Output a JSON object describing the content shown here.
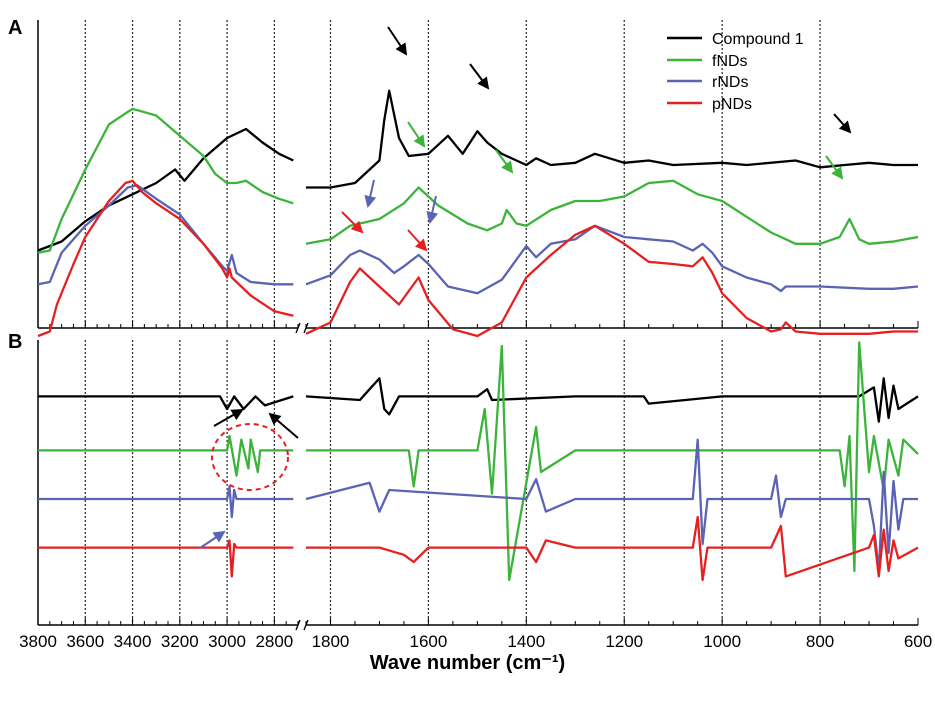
{
  "chart_data": {
    "type": "line",
    "xlabel": "Wave number (cm⁻¹)",
    "x_reversed": true,
    "x_break": [
      2700,
      1850
    ],
    "xlim_left": [
      3800,
      2700
    ],
    "xlim_right": [
      1850,
      600
    ],
    "x_ticks": [
      3800,
      3600,
      3400,
      3200,
      3000,
      2800,
      1800,
      1600,
      1400,
      1200,
      1000,
      800,
      600
    ],
    "grid": "dashed-vertical",
    "colors": {
      "Compound 1": "#000000",
      "fNDs": "#3cb43c",
      "rNDs": "#5a64b4",
      "pNDs": "#e62020"
    },
    "legend": {
      "placement": "top-right",
      "entries": [
        "Compound 1",
        "fNDs",
        "rNDs",
        "pNDs"
      ]
    },
    "panels": [
      {
        "label": "A",
        "series": [
          {
            "name": "Compound 1",
            "x": [
              3800,
              3700,
              3600,
              3500,
              3400,
              3300,
              3220,
              3180,
              3100,
              3000,
              2920,
              2850,
              2780,
              2720,
              1850,
              1800,
              1750,
              1700,
              1690,
              1680,
              1660,
              1640,
              1600,
              1560,
              1530,
              1500,
              1480,
              1450,
              1400,
              1380,
              1350,
              1300,
              1260,
              1200,
              1150,
              1100,
              1000,
              950,
              850,
              800,
              750,
              700,
              650,
              600
            ],
            "y": [
              0.22,
              0.26,
              0.35,
              0.42,
              0.47,
              0.52,
              0.58,
              0.53,
              0.63,
              0.72,
              0.76,
              0.7,
              0.65,
              0.62,
              0.5,
              0.5,
              0.52,
              0.62,
              0.8,
              0.93,
              0.72,
              0.64,
              0.65,
              0.73,
              0.65,
              0.75,
              0.7,
              0.65,
              0.6,
              0.63,
              0.6,
              0.61,
              0.65,
              0.61,
              0.62,
              0.6,
              0.61,
              0.6,
              0.62,
              0.59,
              0.6,
              0.61,
              0.6,
              0.6
            ]
          },
          {
            "name": "fNDs",
            "x": [
              3800,
              3750,
              3700,
              3600,
              3500,
              3400,
              3300,
              3200,
              3100,
              3050,
              3000,
              2960,
              2920,
              2850,
              2780,
              2720,
              1850,
              1800,
              1760,
              1700,
              1650,
              1620,
              1580,
              1520,
              1480,
              1450,
              1440,
              1420,
              1400,
              1350,
              1300,
              1250,
              1200,
              1150,
              1100,
              1050,
              1000,
              950,
              900,
              850,
              800,
              760,
              740,
              720,
              700,
              650,
              600
            ],
            "y": [
              0.21,
              0.22,
              0.36,
              0.58,
              0.78,
              0.85,
              0.82,
              0.73,
              0.64,
              0.56,
              0.52,
              0.52,
              0.53,
              0.48,
              0.45,
              0.43,
              0.25,
              0.27,
              0.33,
              0.36,
              0.43,
              0.5,
              0.42,
              0.34,
              0.31,
              0.34,
              0.4,
              0.34,
              0.33,
              0.4,
              0.44,
              0.44,
              0.46,
              0.52,
              0.53,
              0.47,
              0.44,
              0.37,
              0.3,
              0.25,
              0.25,
              0.28,
              0.36,
              0.27,
              0.25,
              0.26,
              0.28
            ]
          },
          {
            "name": "rNDs",
            "x": [
              3800,
              3750,
              3700,
              3600,
              3500,
              3420,
              3380,
              3300,
              3200,
              3100,
              3020,
              3000,
              2980,
              2960,
              2900,
              2800,
              2720,
              1850,
              1800,
              1760,
              1740,
              1700,
              1670,
              1650,
              1620,
              1600,
              1560,
              1500,
              1450,
              1400,
              1380,
              1350,
              1300,
              1280,
              1260,
              1200,
              1150,
              1100,
              1060,
              1040,
              1020,
              1000,
              950,
              900,
              880,
              870,
              850,
              800,
              700,
              650,
              600
            ],
            "y": [
              0.07,
              0.08,
              0.21,
              0.33,
              0.42,
              0.5,
              0.51,
              0.45,
              0.38,
              0.25,
              0.15,
              0.13,
              0.2,
              0.12,
              0.08,
              0.07,
              0.07,
              0.07,
              0.11,
              0.2,
              0.22,
              0.18,
              0.12,
              0.15,
              0.2,
              0.16,
              0.06,
              0.03,
              0.09,
              0.24,
              0.19,
              0.25,
              0.27,
              0.3,
              0.33,
              0.28,
              0.27,
              0.26,
              0.22,
              0.25,
              0.21,
              0.15,
              0.1,
              0.07,
              0.04,
              0.06,
              0.06,
              0.06,
              0.05,
              0.05,
              0.06
            ]
          },
          {
            "name": "pNDs",
            "x": [
              3800,
              3750,
              3720,
              3650,
              3600,
              3500,
              3430,
              3400,
              3360,
              3300,
              3200,
              3100,
              3020,
              3000,
              2990,
              2980,
              2900,
              2800,
              2720,
              1850,
              1800,
              1760,
              1740,
              1700,
              1660,
              1640,
              1620,
              1600,
              1550,
              1500,
              1450,
              1400,
              1350,
              1300,
              1260,
              1200,
              1150,
              1100,
              1060,
              1040,
              1020,
              1000,
              950,
              900,
              880,
              870,
              850,
              800,
              700,
              650,
              600
            ],
            "y": [
              -0.16,
              -0.14,
              -0.02,
              0.16,
              0.28,
              0.44,
              0.52,
              0.53,
              0.48,
              0.43,
              0.36,
              0.25,
              0.14,
              0.1,
              0.14,
              0.1,
              0.02,
              -0.05,
              -0.07,
              -0.15,
              -0.1,
              0.08,
              0.14,
              0.06,
              -0.02,
              0.04,
              0.1,
              0.0,
              -0.13,
              -0.16,
              -0.1,
              0.1,
              0.2,
              0.29,
              0.33,
              0.25,
              0.17,
              0.16,
              0.15,
              0.19,
              0.12,
              0.03,
              -0.08,
              -0.14,
              -0.13,
              -0.1,
              -0.14,
              -0.15,
              -0.15,
              -0.14,
              -0.14
            ]
          }
        ]
      },
      {
        "label": "B",
        "series": [
          {
            "name": "Compound 1",
            "x": [
              3800,
              3400,
              3030,
              3000,
              2970,
              2930,
              2880,
              2840,
              2720,
              1850,
              1740,
              1720,
              1700,
              1690,
              1680,
              1660,
              1500,
              1480,
              1470,
              1300,
              1160,
              1150,
              1000,
              760,
              720,
              690,
              680,
              670,
              660,
              650,
              640,
              600
            ],
            "y": [
              0.62,
              0.62,
              0.62,
              0.55,
              0.62,
              0.55,
              0.62,
              0.57,
              0.62,
              0.62,
              0.6,
              0.66,
              0.72,
              0.55,
              0.52,
              0.62,
              0.62,
              0.66,
              0.6,
              0.62,
              0.62,
              0.58,
              0.62,
              0.62,
              0.62,
              0.67,
              0.48,
              0.72,
              0.5,
              0.68,
              0.55,
              0.62
            ]
          },
          {
            "name": "fNDs",
            "x": [
              3800,
              3400,
              3000,
              2990,
              2960,
              2940,
              2910,
              2900,
              2870,
              2860,
              2720,
              1850,
              1640,
              1630,
              1620,
              1500,
              1485,
              1470,
              1450,
              1435,
              1380,
              1370,
              1300,
              1200,
              1100,
              1000,
              760,
              750,
              740,
              730,
              720,
              700,
              690,
              670,
              660,
              640,
              630,
              600
            ],
            "y": [
              0.32,
              0.32,
              0.32,
              0.4,
              0.18,
              0.38,
              0.22,
              0.38,
              0.2,
              0.32,
              0.32,
              0.32,
              0.32,
              0.12,
              0.32,
              0.32,
              0.55,
              0.08,
              0.9,
              -0.4,
              0.45,
              0.2,
              0.32,
              0.32,
              0.32,
              0.32,
              0.32,
              0.12,
              0.4,
              -0.35,
              0.92,
              0.2,
              0.4,
              0.1,
              0.38,
              0.18,
              0.38,
              0.3
            ]
          },
          {
            "name": "rNDs",
            "x": [
              3800,
              3400,
              3000,
              2990,
              2980,
              2970,
              2960,
              2720,
              1850,
              1720,
              1700,
              1680,
              1400,
              1380,
              1360,
              1300,
              1060,
              1050,
              1040,
              1030,
              900,
              890,
              880,
              870,
              700,
              690,
              680,
              670,
              660,
              650,
              640,
              630,
              600
            ],
            "y": [
              0.05,
              0.05,
              0.05,
              0.12,
              -0.05,
              0.1,
              0.05,
              0.05,
              0.05,
              0.14,
              -0.02,
              0.1,
              0.05,
              0.16,
              -0.02,
              0.05,
              0.05,
              0.38,
              -0.2,
              0.05,
              0.05,
              0.18,
              -0.05,
              0.05,
              0.05,
              -0.1,
              -0.35,
              0.2,
              -0.25,
              0.15,
              -0.12,
              0.05,
              0.05
            ]
          },
          {
            "name": "pNDs",
            "x": [
              3800,
              3400,
              3000,
              2990,
              2980,
              2970,
              2960,
              2720,
              1850,
              1700,
              1650,
              1630,
              1600,
              1400,
              1380,
              1360,
              1300,
              1060,
              1050,
              1040,
              1030,
              900,
              880,
              870,
              700,
              690,
              680,
              670,
              660,
              650,
              640,
              600
            ],
            "y": [
              -0.22,
              -0.22,
              -0.22,
              -0.18,
              -0.38,
              -0.2,
              -0.22,
              -0.22,
              -0.22,
              -0.22,
              -0.26,
              -0.3,
              -0.22,
              -0.22,
              -0.3,
              -0.18,
              -0.22,
              -0.22,
              -0.05,
              -0.4,
              -0.22,
              -0.22,
              -0.1,
              -0.38,
              -0.22,
              -0.15,
              -0.38,
              -0.12,
              -0.35,
              -0.18,
              -0.28,
              -0.22
            ]
          }
        ]
      }
    ]
  }
}
